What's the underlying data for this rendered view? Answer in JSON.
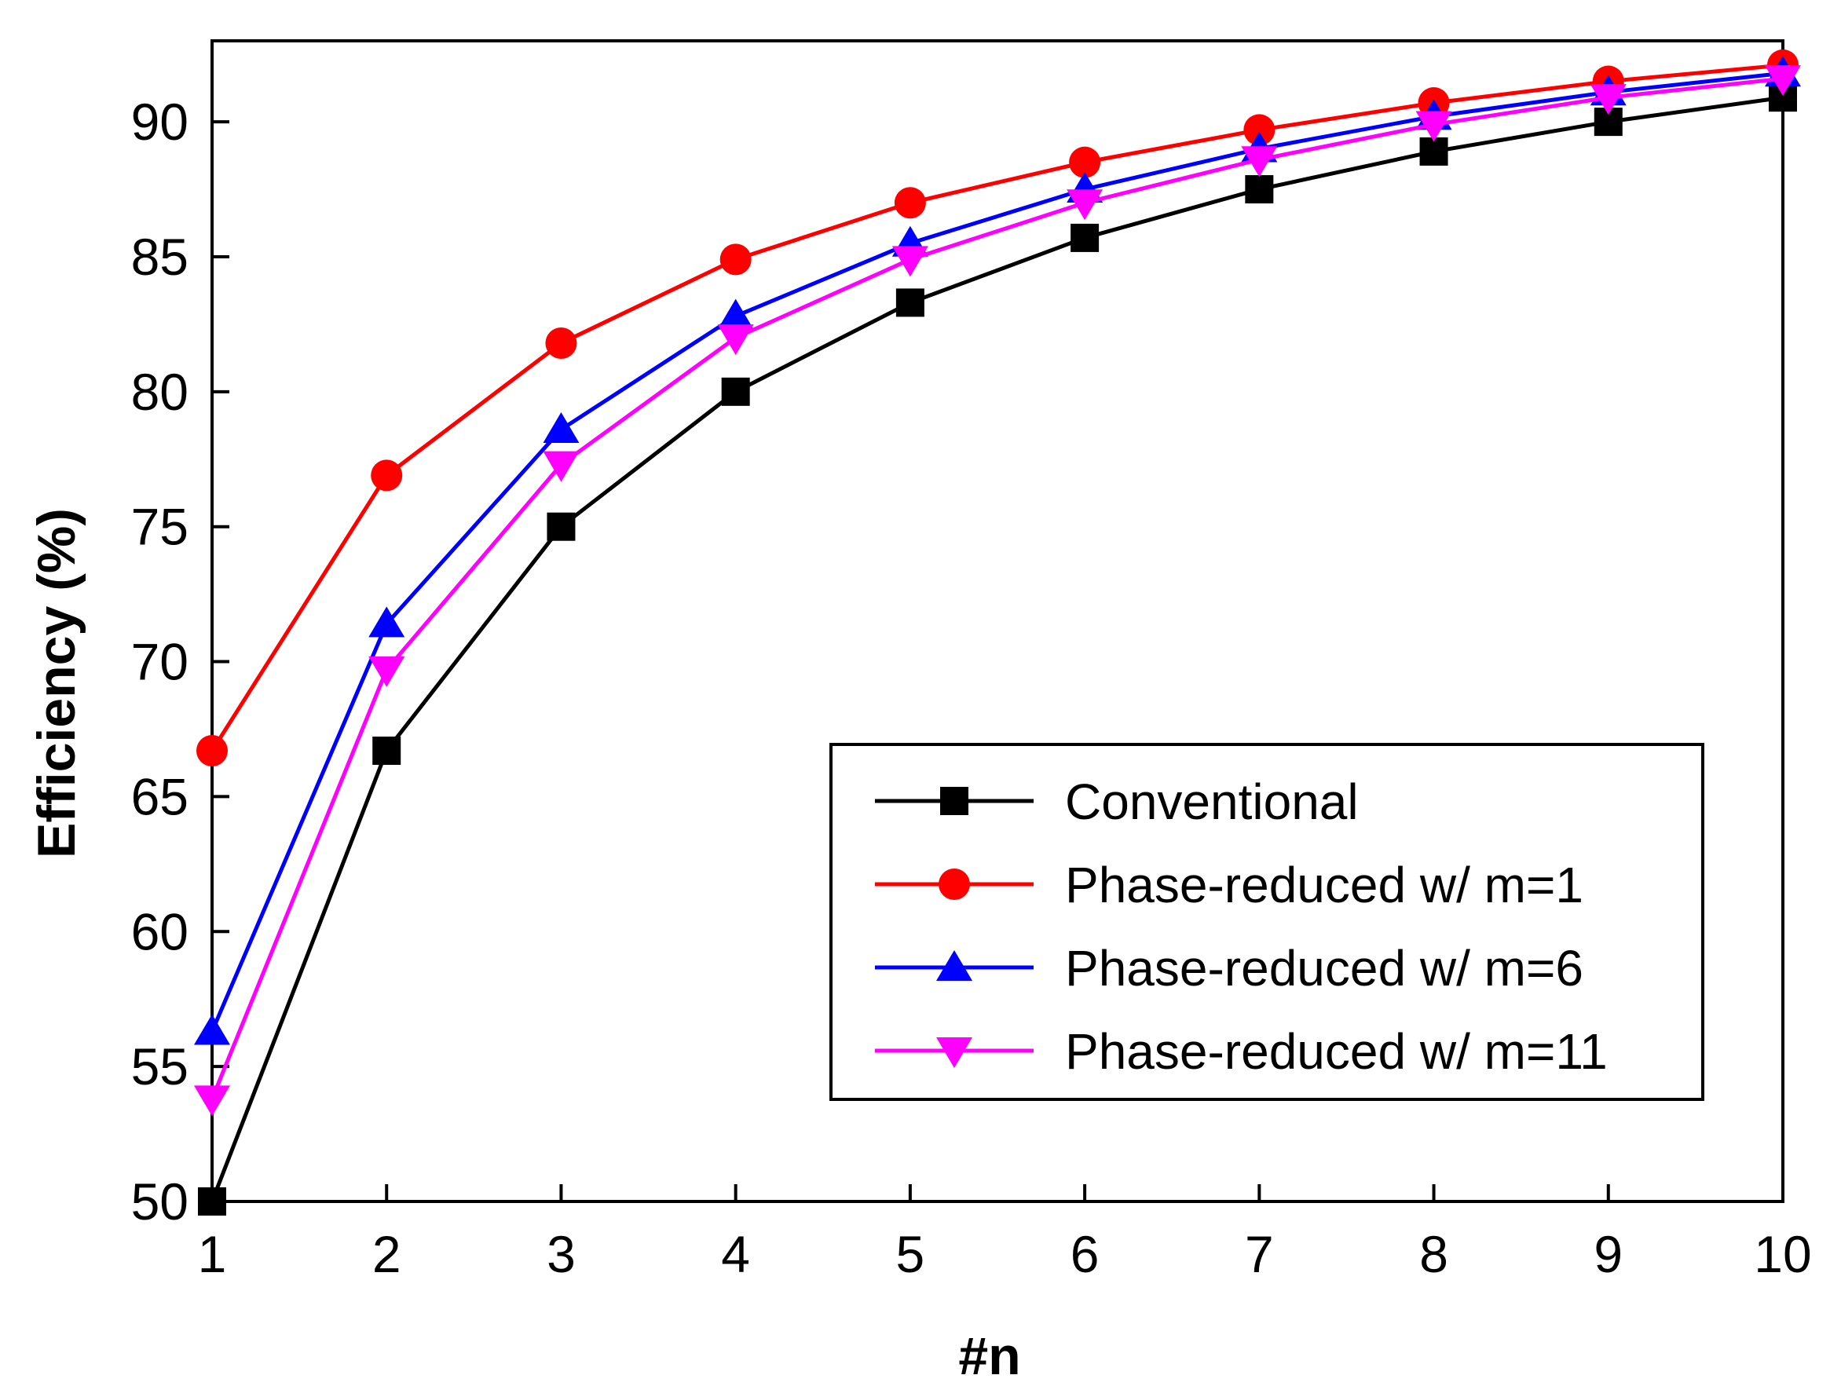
{
  "chart_data": {
    "type": "line",
    "xlabel": "#n",
    "ylabel": "Efficiency (%)",
    "x": [
      1,
      2,
      3,
      4,
      5,
      6,
      7,
      8,
      9,
      10
    ],
    "xlim": [
      1,
      10
    ],
    "ylim": [
      50,
      93
    ],
    "xticks": [
      1,
      2,
      3,
      4,
      5,
      6,
      7,
      8,
      9,
      10
    ],
    "yticks": [
      50,
      55,
      60,
      65,
      70,
      75,
      80,
      85,
      90
    ],
    "grid": false,
    "legend_position": "lower-right",
    "series": [
      {
        "name": "Conventional",
        "color": "#000000",
        "marker": "square",
        "values": [
          50.0,
          66.7,
          75.0,
          80.0,
          83.3,
          85.7,
          87.5,
          88.9,
          90.0,
          90.9
        ]
      },
      {
        "name": "Phase-reduced w/ m=1",
        "color": "#ff0000",
        "marker": "circle",
        "values": [
          66.7,
          76.9,
          81.8,
          84.9,
          87.0,
          88.5,
          89.7,
          90.7,
          91.5,
          92.1
        ]
      },
      {
        "name": "Phase-reduced w/ m=6",
        "color": "#0000ff",
        "marker": "triangle-up",
        "values": [
          56.3,
          71.4,
          78.6,
          82.8,
          85.5,
          87.5,
          89.0,
          90.2,
          91.1,
          91.8
        ]
      },
      {
        "name": "Phase-reduced w/ m=11",
        "color": "#ff00ff",
        "marker": "triangle-down",
        "values": [
          53.8,
          69.7,
          77.3,
          82.0,
          84.9,
          87.0,
          88.6,
          89.9,
          90.9,
          91.6
        ]
      }
    ]
  }
}
